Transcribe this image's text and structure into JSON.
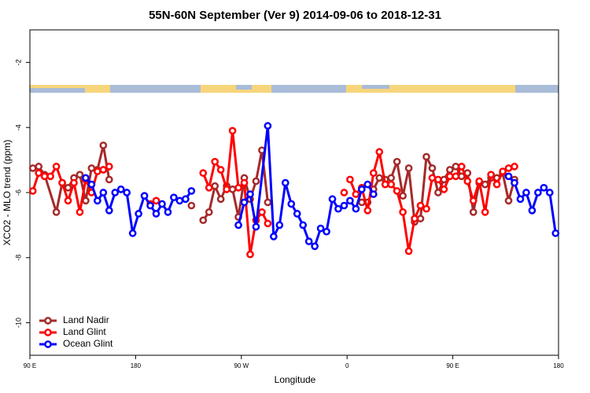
{
  "chart_data": {
    "type": "line",
    "title": "55N-60N September (Ver 9)   2014-09-06 to 2018-12-31",
    "x_label": "Longitude",
    "y_label": "XCO2 - MLO trend (ppm)",
    "xlim": [
      90,
      540
    ],
    "xticks": [
      {
        "value": 90,
        "label": "90 E"
      },
      180,
      {
        "value": 270,
        "label": "90 W"
      },
      {
        "value": 360,
        "label": "0"
      },
      {
        "value": 450,
        "label": "90 E"
      },
      {
        "value": 540,
        "label": "180"
      }
    ],
    "ylim": [
      -11,
      -1
    ],
    "yticks": [
      -2,
      -4,
      -6,
      -8,
      -10
    ],
    "legend": "bottom-left",
    "series": [
      {
        "name": "Land Nadir",
        "color": "#a52a2a",
        "x": [
          92.5,
          97.5,
          102.5,
          112.5,
          117.5,
          122.5,
          127.5,
          132.5,
          137.5,
          142.5,
          147.5,
          152.5,
          157.5,
          162.5,
          227.5,
          232.5,
          237.5,
          242.5,
          247.5,
          252.5,
          257.5,
          262.5,
          267.5,
          272.5,
          277.5,
          282.5,
          287.5,
          292.5,
          352.5,
          372.5,
          377.5,
          382.5,
          387.5,
          392.5,
          397.5,
          402.5,
          407.5,
          412.5,
          417.5,
          422.5,
          427.5,
          432.5,
          437.5,
          442.5,
          447.5,
          452.5,
          457.5,
          462.5,
          467.5,
          472.5,
          477.5,
          482.5,
          487.5,
          492.5,
          497.5,
          502.5
        ],
        "values": [
          -5.25,
          -5.2,
          -5.45,
          -6.6,
          -5.7,
          -5.85,
          -5.55,
          -5.45,
          -6.25,
          -5.25,
          -5.3,
          -4.55,
          -5.6,
          null,
          -6.4,
          null,
          -6.85,
          -6.6,
          -5.8,
          -6.2,
          -5.8,
          -5.9,
          -6.75,
          -5.55,
          -6.2,
          -5.65,
          -4.7,
          -6.3,
          null,
          -6.3,
          -6.3,
          -5.9,
          -5.55,
          -5.6,
          -5.55,
          -5.05,
          -6.1,
          -5.25,
          -6.9,
          -6.8,
          -4.9,
          -5.25,
          -6.0,
          -5.6,
          -5.3,
          -5.2,
          -5.5,
          -5.4,
          -6.6,
          -5.7,
          -5.75,
          -5.55,
          -5.55,
          -5.4,
          -6.25,
          -5.6
        ]
      },
      {
        "name": "Land Glint",
        "color": "#ff0000",
        "x": [
          92.5,
          97.5,
          102.5,
          107.5,
          112.5,
          117.5,
          122.5,
          127.5,
          132.5,
          137.5,
          142.5,
          147.5,
          152.5,
          157.5,
          162.5,
          192.5,
          197.5,
          202.5,
          237.5,
          242.5,
          247.5,
          252.5,
          257.5,
          262.5,
          267.5,
          272.5,
          277.5,
          282.5,
          287.5,
          292.5,
          297.5,
          357.5,
          360,
          362.5,
          367.5,
          372.5,
          377.5,
          382.5,
          387.5,
          392.5,
          397.5,
          402.5,
          407.5,
          412.5,
          417.5,
          422.5,
          427.5,
          432.5,
          437.5,
          442.5,
          447.5,
          452.5,
          457.5,
          462.5,
          467.5,
          472.5,
          477.5,
          482.5,
          487.5,
          492.5,
          497.5,
          502.5
        ],
        "values": [
          -5.95,
          -5.4,
          -5.5,
          -5.5,
          -5.2,
          -5.7,
          -6.25,
          -5.7,
          -6.6,
          -5.6,
          -6.0,
          -5.35,
          -5.3,
          -5.2,
          null,
          -6.35,
          -6.25,
          null,
          -5.4,
          -5.85,
          -5.05,
          -5.3,
          -5.9,
          -4.1,
          -5.85,
          -5.7,
          -7.9,
          -6.85,
          -6.6,
          -6.95,
          null,
          -6.0,
          null,
          -5.6,
          -6.05,
          -5.85,
          -6.55,
          -5.4,
          -4.75,
          -5.75,
          -5.75,
          -5.95,
          -6.6,
          -7.8,
          -6.8,
          -6.4,
          -6.5,
          -5.55,
          -5.6,
          -5.9,
          -5.5,
          -5.5,
          -5.2,
          -5.65,
          -6.25,
          -5.65,
          -6.6,
          -5.45,
          -5.75,
          -5.35,
          -5.25,
          -5.2
        ]
      },
      {
        "name": "Ocean Glint",
        "color": "#0000ff",
        "x": [
          137.5,
          142.5,
          147.5,
          152.5,
          157.5,
          162.5,
          167.5,
          172.5,
          177.5,
          182.5,
          187.5,
          192.5,
          197.5,
          202.5,
          207.5,
          212.5,
          217.5,
          222.5,
          227.5,
          232.5,
          267.5,
          272.5,
          277.5,
          282.5,
          292.5,
          297.5,
          302.5,
          307.5,
          312.5,
          317.5,
          322.5,
          327.5,
          332.5,
          337.5,
          342.5,
          347.5,
          352.5,
          357.5,
          362.5,
          367.5,
          372.5,
          377.5,
          382.5,
          387.5,
          497.5,
          502.5,
          507.5,
          512.5,
          517.5,
          522.5,
          527.5,
          532.5,
          537.5
        ],
        "values": [
          -5.55,
          -5.75,
          -6.25,
          -6.0,
          -6.55,
          -6.0,
          -5.9,
          -6.0,
          -7.25,
          -6.65,
          -6.1,
          -6.4,
          -6.65,
          -6.35,
          -6.6,
          -6.15,
          -6.25,
          -6.2,
          -5.95,
          null,
          -7.0,
          -6.3,
          -6.05,
          -7.05,
          -3.95,
          -7.35,
          -7.0,
          -5.7,
          -6.35,
          -6.65,
          -7.0,
          -7.5,
          -7.65,
          -7.1,
          -7.2,
          -6.2,
          -6.5,
          -6.4,
          -6.25,
          -6.5,
          -5.9,
          -5.75,
          -6.05,
          null,
          -5.5,
          -5.7,
          -6.2,
          -6.0,
          -6.55,
          -6.0,
          -5.85,
          -6.0,
          -7.25
        ]
      }
    ]
  }
}
